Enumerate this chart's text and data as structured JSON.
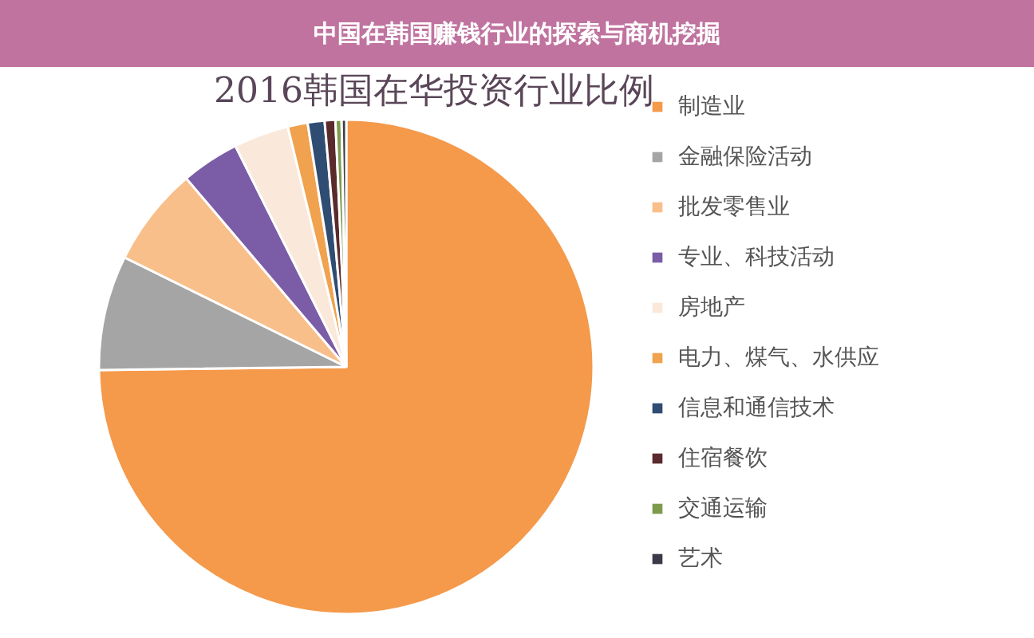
{
  "chart_data": {
    "type": "pie",
    "title": "中国在韩国赚钱行业的探索与商机挖掘",
    "subtitle": "2016韩国在华投资行业比例",
    "categories": [
      "制造业",
      "金融保险活动",
      "批发零售业",
      "专业、科技活动",
      "房地产",
      "电力、煤气、水供应",
      "信息和通信技术",
      "住宿餐饮",
      "交通运输",
      "艺术"
    ],
    "values": [
      74.8,
      7.5,
      6.5,
      3.8,
      3.6,
      1.3,
      1.1,
      0.7,
      0.4,
      0.3
    ],
    "colors": [
      "#f5994a",
      "#a5a5a5",
      "#f8bf8a",
      "#7b5ca6",
      "#fae8da",
      "#f0a24e",
      "#2f4c72",
      "#5b2a2c",
      "#7d9b4c",
      "#3a3a48"
    ],
    "legend": "right"
  }
}
